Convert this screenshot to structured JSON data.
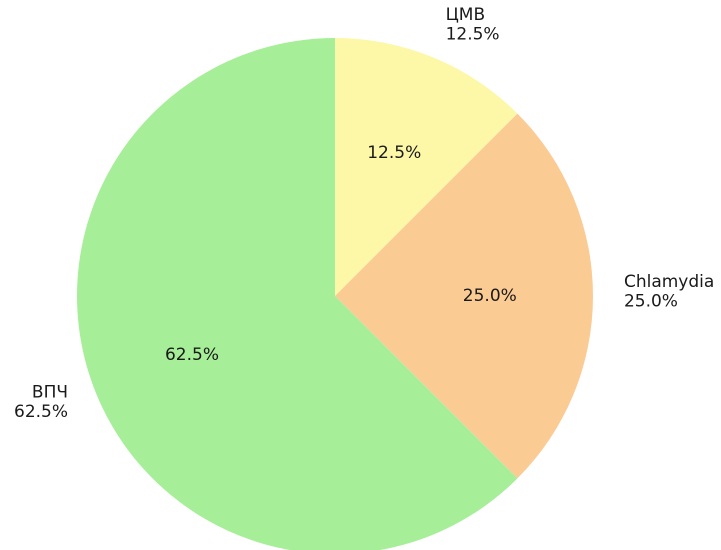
{
  "chart_data": {
    "type": "pie",
    "title": "",
    "slices": [
      {
        "label": "ЦМВ",
        "value": 12.5,
        "pct_text": "12.5%",
        "color": "#fdf7a8"
      },
      {
        "label": "Chlamydia",
        "value": 25.0,
        "pct_text": "25.0%",
        "color": "#fbcb94"
      },
      {
        "label": "ВПЧ",
        "value": 62.5,
        "pct_text": "62.5%",
        "color": "#a6ee98"
      }
    ],
    "start_angle": "12 o'clock",
    "direction": "clockwise",
    "legend": "none"
  }
}
